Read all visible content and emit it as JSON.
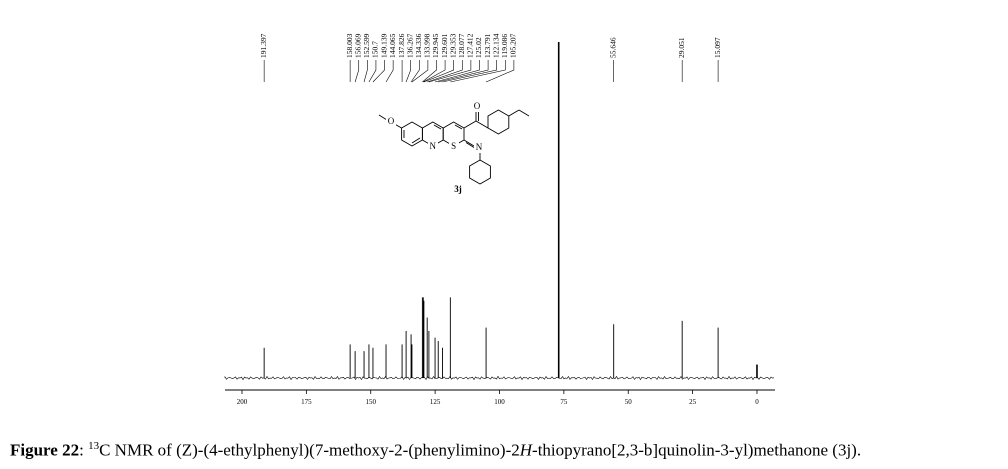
{
  "chart_data": {
    "type": "spectrum",
    "x": [
      191.397,
      158.003,
      156.069,
      152.599,
      150.7,
      149.139,
      144.065,
      137.826,
      136.267,
      134.336,
      133.998,
      129.945,
      129.601,
      129.353,
      128.077,
      127.412,
      125.02,
      123.791,
      122.134,
      119.086,
      105.207,
      55.646,
      29.051,
      15.097
    ],
    "values": [
      9,
      10,
      8,
      8,
      10,
      9,
      10,
      10,
      14,
      13,
      10,
      24,
      24,
      23,
      18,
      14,
      12,
      11,
      9,
      24,
      15,
      16,
      17,
      15
    ],
    "unlabeled_peaks": {
      "x": [
        77.0,
        0.0
      ],
      "values": [
        100,
        4
      ]
    },
    "xlim": [
      206.6,
      -7
    ],
    "xticks": [
      200,
      175,
      150,
      125,
      100,
      75,
      50,
      25,
      0
    ],
    "ylim": [
      0,
      100
    ],
    "color": "#000000"
  },
  "structure": {
    "label": "3j",
    "atoms": [
      "O",
      "O",
      "N",
      "S",
      "N"
    ]
  },
  "caption": {
    "label": "Figure 22",
    "parts": [
      ": ",
      "13",
      "C NMR of (Z)-(4-ethylphenyl)(7-methoxy-2-(phenylimino)-2",
      "H",
      "-thiopyrano[2,3-b]quinolin-3-yl)methanone (3j)."
    ]
  }
}
